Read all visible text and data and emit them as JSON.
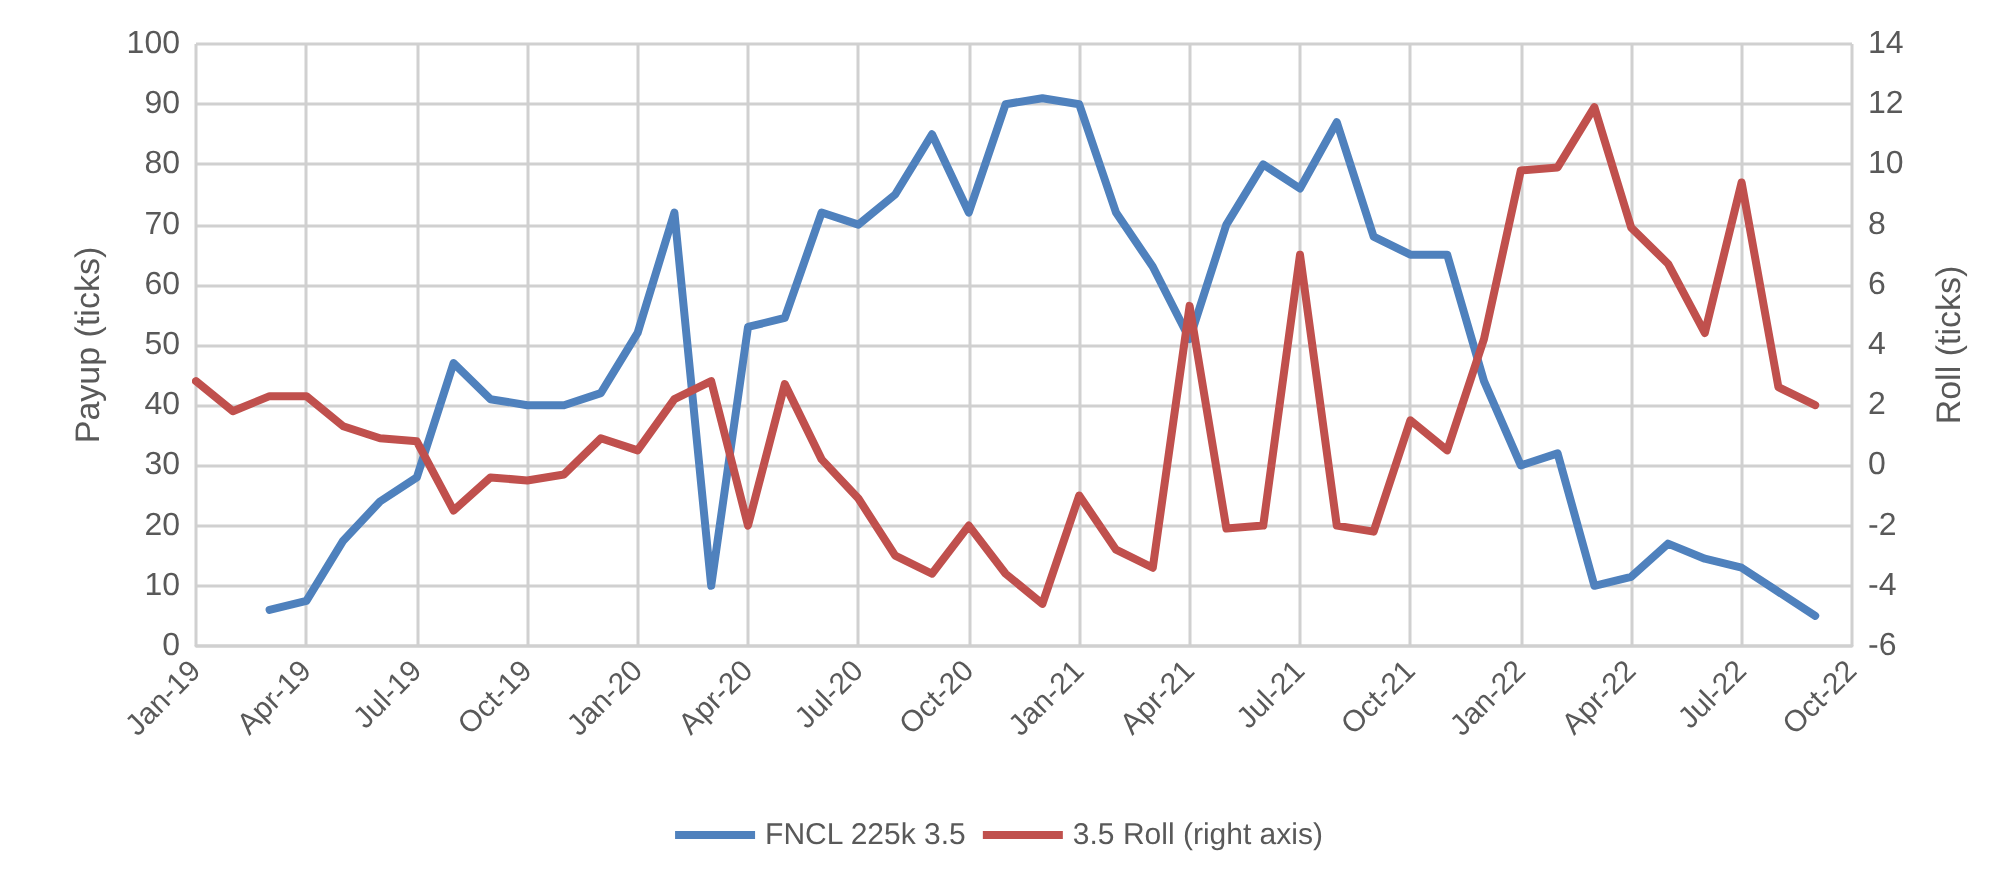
{
  "chart_data": {
    "type": "line",
    "ylabel": "Payup (ticks)",
    "y2label": "Roll (ticks)",
    "categories": [
      "Jan-19",
      null,
      null,
      "Apr-19",
      null,
      null,
      "Jul-19",
      null,
      null,
      "Oct-19",
      null,
      null,
      "Jan-20",
      null,
      null,
      "Apr-20",
      null,
      null,
      "Jul-20",
      null,
      null,
      "Oct-20",
      null,
      null,
      "Jan-21",
      null,
      null,
      "Apr-21",
      null,
      null,
      "Jul-21",
      null,
      null,
      "Oct-21",
      null,
      null,
      "Jan-22",
      null,
      null,
      "Apr-22",
      null,
      null,
      "Jul-22",
      null,
      null,
      "Oct-22"
    ],
    "series": [
      {
        "name": "FNCL 225k 3.5",
        "color": "#4f81bd",
        "values": [
          null,
          null,
          6,
          7.5,
          17.5,
          24,
          28,
          47,
          41,
          40,
          40,
          42,
          52,
          72,
          10,
          53,
          54.5,
          72,
          70,
          75,
          85,
          72,
          90,
          91,
          90,
          72,
          63,
          51,
          70,
          80,
          76,
          87,
          68,
          65,
          65,
          44,
          30,
          32,
          10,
          11.5,
          17,
          14.5,
          13,
          9,
          5,
          null
        ]
      },
      {
        "name": "3.5 Roll (right axis)",
        "color": "#c0504d",
        "axis": "y2",
        "values": [
          2.8,
          1.8,
          2.3,
          2.3,
          1.3,
          0.9,
          0.8,
          -1.5,
          -0.4,
          -0.5,
          -0.3,
          0.9,
          0.5,
          2.2,
          2.8,
          -2.0,
          2.7,
          0.2,
          -1.1,
          -3.0,
          -3.6,
          -2.0,
          -3.6,
          -4.6,
          -1.0,
          -2.8,
          -3.4,
          5.3,
          -2.1,
          -2.0,
          7.0,
          -2.0,
          -2.2,
          1.5,
          0.5,
          4.2,
          9.8,
          9.9,
          11.9,
          7.9,
          6.7,
          4.4,
          9.4,
          2.6,
          2.0,
          null
        ]
      }
    ],
    "ylim": [
      0,
      100
    ],
    "yticks": [
      0,
      10,
      20,
      30,
      40,
      50,
      60,
      70,
      80,
      90,
      100
    ],
    "y2lim": [
      -6,
      14
    ],
    "y2ticks": [
      -6,
      -4,
      -2,
      0,
      2,
      4,
      6,
      8,
      10,
      12,
      14
    ],
    "grid": true,
    "legend": "bottom",
    "marker": "none",
    "line_style": "solid"
  }
}
